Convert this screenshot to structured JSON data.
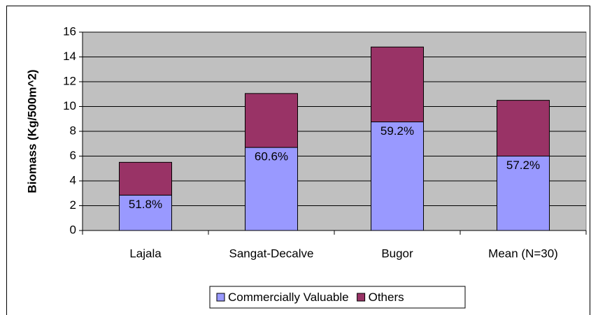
{
  "chart_data": {
    "type": "stacked_bar",
    "y_label": "Biomass (Kg/500m^2)",
    "categories": [
      "Lajala",
      "Sangat-Decalve",
      "Bugor",
      "Mean (N=30)"
    ],
    "series": [
      {
        "name": "Commercially Valuable",
        "color": "#9999ff",
        "values": [
          2.85,
          6.7,
          8.76,
          6.0
        ]
      },
      {
        "name": "Others",
        "color": "#993366",
        "values": [
          2.65,
          4.35,
          6.04,
          4.5
        ]
      }
    ],
    "annotations": [
      "51.8%",
      "60.6%",
      "59.2%",
      "57.2%"
    ],
    "ylim": [
      0,
      16
    ],
    "yticks": [
      0,
      2,
      4,
      6,
      8,
      10,
      12,
      14,
      16
    ],
    "grid": true,
    "legend": "bottom",
    "plot_background": "#c0c0c0"
  }
}
